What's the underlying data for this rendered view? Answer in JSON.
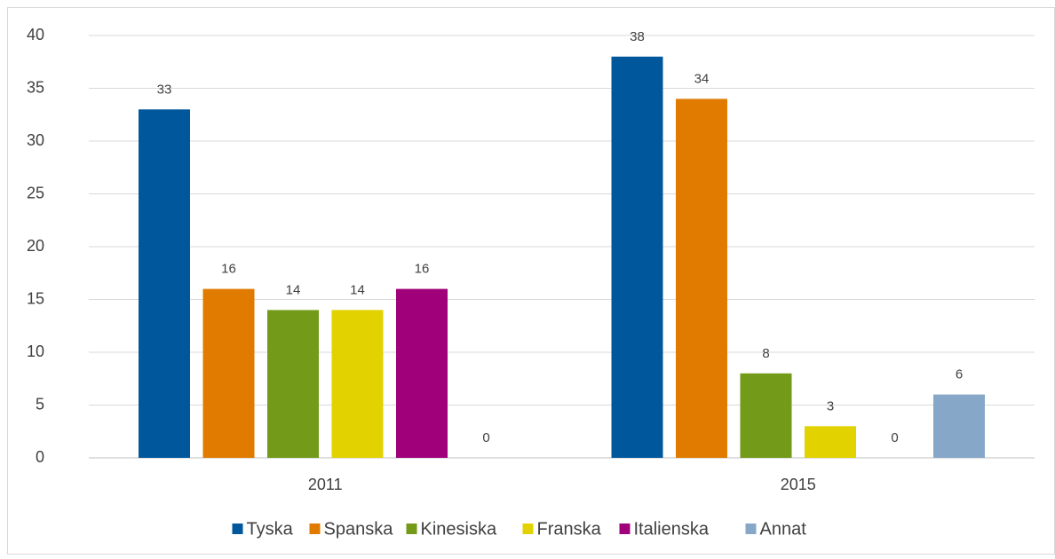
{
  "chart_data": {
    "type": "bar",
    "categories": [
      "2011",
      "2015"
    ],
    "series": [
      {
        "name": "Tyska",
        "color": "#00579c",
        "values": [
          33,
          38
        ]
      },
      {
        "name": "Spanska",
        "color": "#e07b00",
        "values": [
          16,
          34
        ]
      },
      {
        "name": "Kinesiska",
        "color": "#739a19",
        "values": [
          14,
          8
        ]
      },
      {
        "name": "Franska",
        "color": "#e2d200",
        "values": [
          14,
          3
        ]
      },
      {
        "name": "Italienska",
        "color": "#a0007a",
        "values": [
          16,
          0
        ]
      },
      {
        "name": "Annat",
        "color": "#86a7c8",
        "values": [
          0,
          6
        ]
      }
    ],
    "ylim": [
      0,
      40
    ],
    "yticks": [
      0,
      5,
      10,
      15,
      20,
      25,
      30,
      35,
      40
    ],
    "grid": true,
    "legend": "bottom"
  }
}
